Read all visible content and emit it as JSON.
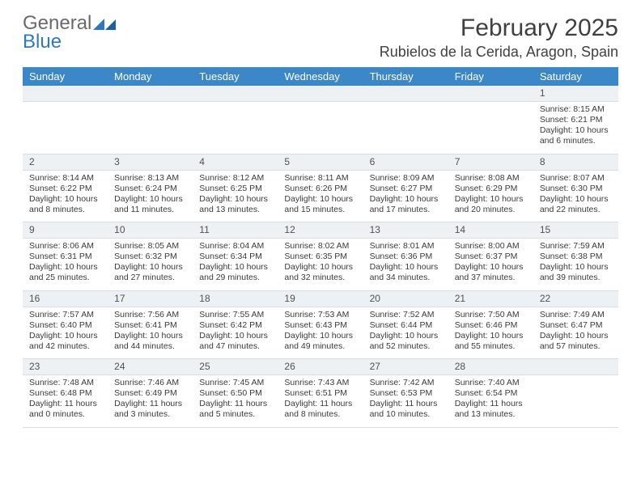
{
  "brand": {
    "word1": "General",
    "word2": "Blue"
  },
  "title": "February 2025",
  "location": "Rubielos de la Cerida, Aragon, Spain",
  "colors": {
    "header_bg": "#3b87c8",
    "header_fg": "#ffffff",
    "daynum_bg": "#eef1f4",
    "border": "#d5dde6",
    "text": "#3a3a3a",
    "brand_gray": "#6a6a6a",
    "brand_blue": "#2f78bf"
  },
  "weekdays": [
    "Sunday",
    "Monday",
    "Tuesday",
    "Wednesday",
    "Thursday",
    "Friday",
    "Saturday"
  ],
  "weeks": [
    {
      "nums": [
        "",
        "",
        "",
        "",
        "",
        "",
        "1"
      ],
      "cells": [
        null,
        null,
        null,
        null,
        null,
        null,
        {
          "sunrise": "8:15 AM",
          "sunset": "6:21 PM",
          "daylight": "10 hours and 6 minutes."
        }
      ]
    },
    {
      "nums": [
        "2",
        "3",
        "4",
        "5",
        "6",
        "7",
        "8"
      ],
      "cells": [
        {
          "sunrise": "8:14 AM",
          "sunset": "6:22 PM",
          "daylight": "10 hours and 8 minutes."
        },
        {
          "sunrise": "8:13 AM",
          "sunset": "6:24 PM",
          "daylight": "10 hours and 11 minutes."
        },
        {
          "sunrise": "8:12 AM",
          "sunset": "6:25 PM",
          "daylight": "10 hours and 13 minutes."
        },
        {
          "sunrise": "8:11 AM",
          "sunset": "6:26 PM",
          "daylight": "10 hours and 15 minutes."
        },
        {
          "sunrise": "8:09 AM",
          "sunset": "6:27 PM",
          "daylight": "10 hours and 17 minutes."
        },
        {
          "sunrise": "8:08 AM",
          "sunset": "6:29 PM",
          "daylight": "10 hours and 20 minutes."
        },
        {
          "sunrise": "8:07 AM",
          "sunset": "6:30 PM",
          "daylight": "10 hours and 22 minutes."
        }
      ]
    },
    {
      "nums": [
        "9",
        "10",
        "11",
        "12",
        "13",
        "14",
        "15"
      ],
      "cells": [
        {
          "sunrise": "8:06 AM",
          "sunset": "6:31 PM",
          "daylight": "10 hours and 25 minutes."
        },
        {
          "sunrise": "8:05 AM",
          "sunset": "6:32 PM",
          "daylight": "10 hours and 27 minutes."
        },
        {
          "sunrise": "8:04 AM",
          "sunset": "6:34 PM",
          "daylight": "10 hours and 29 minutes."
        },
        {
          "sunrise": "8:02 AM",
          "sunset": "6:35 PM",
          "daylight": "10 hours and 32 minutes."
        },
        {
          "sunrise": "8:01 AM",
          "sunset": "6:36 PM",
          "daylight": "10 hours and 34 minutes."
        },
        {
          "sunrise": "8:00 AM",
          "sunset": "6:37 PM",
          "daylight": "10 hours and 37 minutes."
        },
        {
          "sunrise": "7:59 AM",
          "sunset": "6:38 PM",
          "daylight": "10 hours and 39 minutes."
        }
      ]
    },
    {
      "nums": [
        "16",
        "17",
        "18",
        "19",
        "20",
        "21",
        "22"
      ],
      "cells": [
        {
          "sunrise": "7:57 AM",
          "sunset": "6:40 PM",
          "daylight": "10 hours and 42 minutes."
        },
        {
          "sunrise": "7:56 AM",
          "sunset": "6:41 PM",
          "daylight": "10 hours and 44 minutes."
        },
        {
          "sunrise": "7:55 AM",
          "sunset": "6:42 PM",
          "daylight": "10 hours and 47 minutes."
        },
        {
          "sunrise": "7:53 AM",
          "sunset": "6:43 PM",
          "daylight": "10 hours and 49 minutes."
        },
        {
          "sunrise": "7:52 AM",
          "sunset": "6:44 PM",
          "daylight": "10 hours and 52 minutes."
        },
        {
          "sunrise": "7:50 AM",
          "sunset": "6:46 PM",
          "daylight": "10 hours and 55 minutes."
        },
        {
          "sunrise": "7:49 AM",
          "sunset": "6:47 PM",
          "daylight": "10 hours and 57 minutes."
        }
      ]
    },
    {
      "nums": [
        "23",
        "24",
        "25",
        "26",
        "27",
        "28",
        ""
      ],
      "cells": [
        {
          "sunrise": "7:48 AM",
          "sunset": "6:48 PM",
          "daylight": "11 hours and 0 minutes."
        },
        {
          "sunrise": "7:46 AM",
          "sunset": "6:49 PM",
          "daylight": "11 hours and 3 minutes."
        },
        {
          "sunrise": "7:45 AM",
          "sunset": "6:50 PM",
          "daylight": "11 hours and 5 minutes."
        },
        {
          "sunrise": "7:43 AM",
          "sunset": "6:51 PM",
          "daylight": "11 hours and 8 minutes."
        },
        {
          "sunrise": "7:42 AM",
          "sunset": "6:53 PM",
          "daylight": "11 hours and 10 minutes."
        },
        {
          "sunrise": "7:40 AM",
          "sunset": "6:54 PM",
          "daylight": "11 hours and 13 minutes."
        },
        null
      ]
    }
  ],
  "labels": {
    "sunrise": "Sunrise:",
    "sunset": "Sunset:",
    "daylight": "Daylight:"
  }
}
